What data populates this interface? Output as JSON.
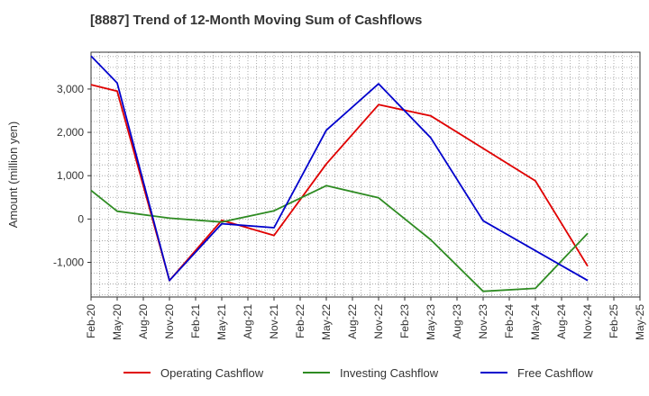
{
  "chart_data": {
    "type": "line",
    "title": "[8887]  Trend of 12-Month Moving Sum of Cashflows",
    "ylabel": "Amount (million yen)",
    "xlabel": "",
    "categories": [
      "Feb-20",
      "May-20",
      "Aug-20",
      "Nov-20",
      "Feb-21",
      "May-21",
      "Aug-21",
      "Nov-21",
      "Feb-22",
      "May-22",
      "Aug-22",
      "Nov-22",
      "Feb-23",
      "May-23",
      "Aug-23",
      "Nov-23",
      "Feb-24",
      "May-24",
      "Aug-24",
      "Nov-24",
      "Feb-25",
      "May-25"
    ],
    "yticks": [
      -1000,
      0,
      1000,
      2000,
      3000
    ],
    "ytick_labels": [
      "-1,000",
      "0",
      "1,000",
      "2,000",
      "3,000"
    ],
    "ylim": [
      -1800,
      3850
    ],
    "grid": true,
    "legend_position": "bottom",
    "series": [
      {
        "name": "Operating Cashflow",
        "color": "#e00000",
        "values": [
          3100,
          2950,
          null,
          -1420,
          null,
          -30,
          null,
          -380,
          null,
          1270,
          null,
          2640,
          null,
          2380,
          null,
          null,
          null,
          880,
          null,
          -1090,
          null,
          null
        ]
      },
      {
        "name": "Investing Cashflow",
        "color": "#2e8b22",
        "values": [
          660,
          180,
          null,
          20,
          null,
          -70,
          null,
          190,
          null,
          770,
          null,
          490,
          null,
          -480,
          null,
          -1670,
          null,
          -1600,
          null,
          -330,
          null,
          null
        ]
      },
      {
        "name": "Free Cashflow",
        "color": "#0000cc",
        "values": [
          3760,
          3140,
          null,
          -1420,
          null,
          -110,
          null,
          -200,
          null,
          2050,
          null,
          3120,
          null,
          1870,
          null,
          -40,
          null,
          null,
          null,
          -1420,
          null,
          null
        ]
      }
    ]
  }
}
